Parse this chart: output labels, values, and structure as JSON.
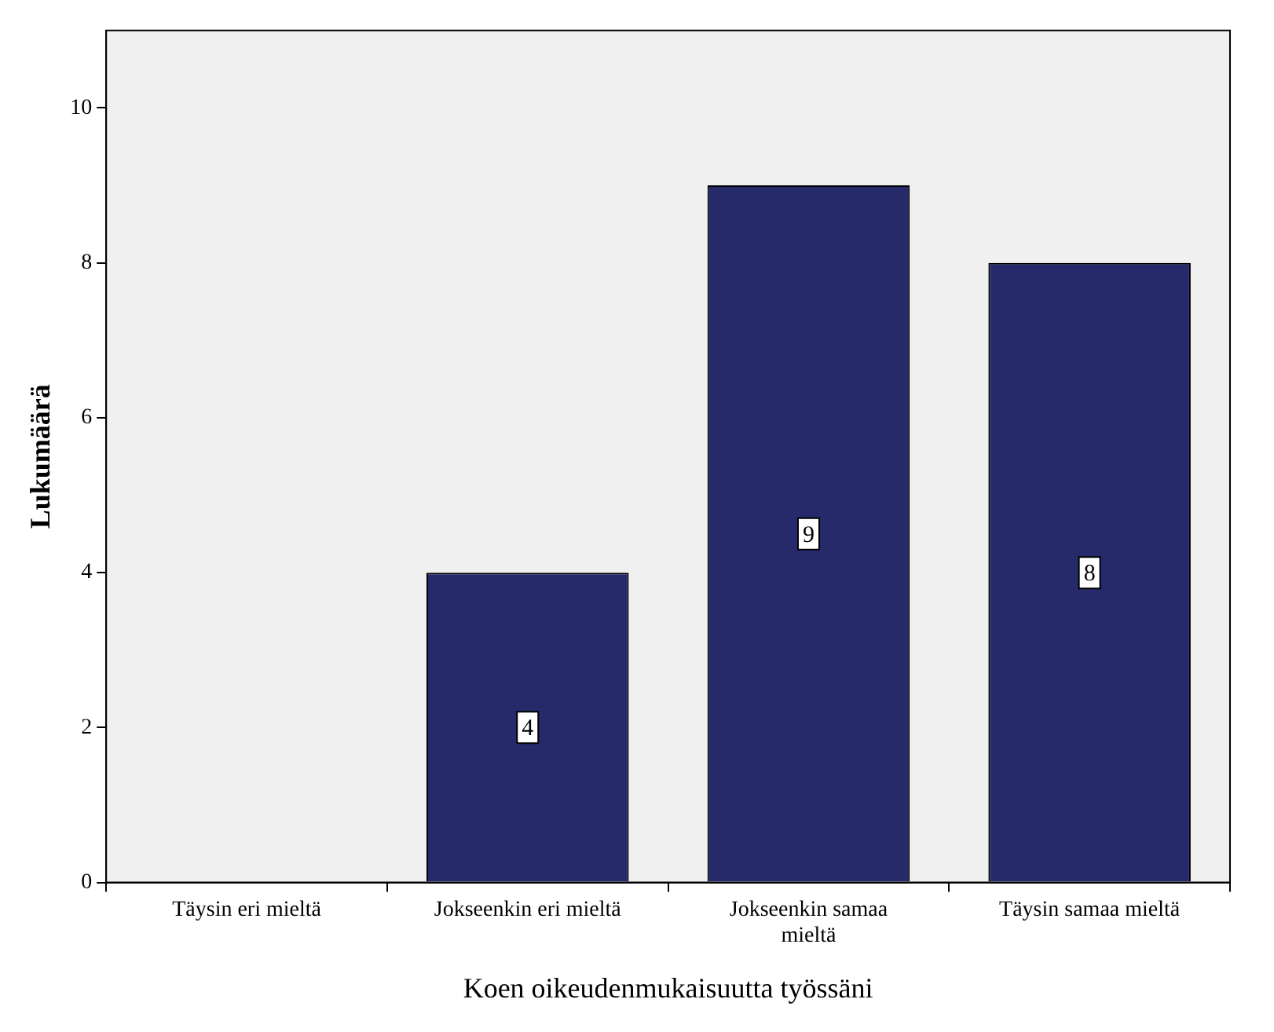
{
  "chart_data": {
    "type": "bar",
    "xlabel": "Koen oikeudenmukaisuutta työssäni",
    "ylabel": "Lukumäärä",
    "categories": [
      "Täysin eri mieltä",
      "Jokseenkin eri mieltä",
      "Jokseenkin samaa mieltä",
      "Täysin samaa mieltä"
    ],
    "values": [
      0,
      4,
      9,
      8
    ],
    "value_labels": [
      null,
      "4",
      "9",
      "8"
    ],
    "color": "#262a6b",
    "ylim": [
      0,
      11
    ],
    "yticks": [
      0,
      2,
      4,
      6,
      8,
      10
    ],
    "grid": false,
    "legend": false
  }
}
